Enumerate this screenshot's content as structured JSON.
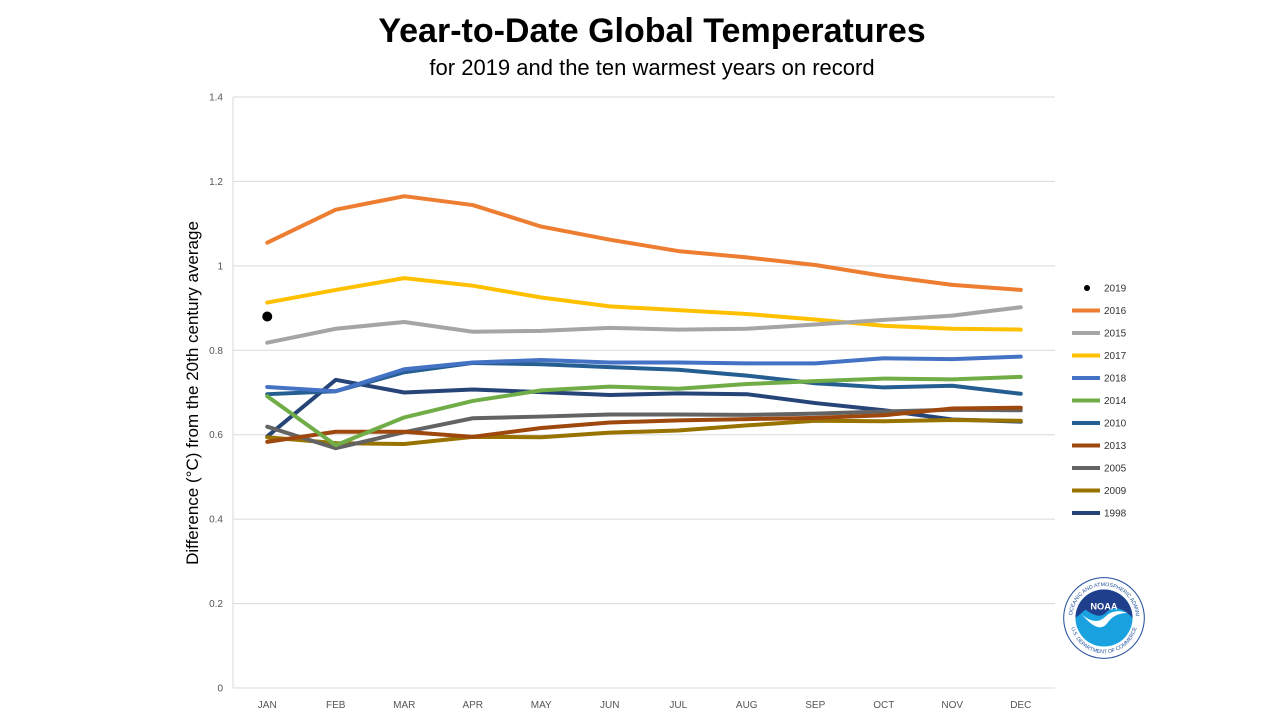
{
  "chart_data": {
    "type": "line",
    "title": "Year-to-Date Global Temperatures",
    "subtitle": "for 2019 and the ten warmest years on record",
    "ylabel": "Difference (°C) from the 20th century average",
    "xlabel": "",
    "categories": [
      "JAN",
      "FEB",
      "MAR",
      "APR",
      "MAY",
      "JUN",
      "JUL",
      "AUG",
      "SEP",
      "OCT",
      "NOV",
      "DEC"
    ],
    "ylim": [
      0,
      1.4
    ],
    "yticks": [
      0,
      0.2,
      0.4,
      0.6,
      0.8,
      1,
      1.2,
      1.4
    ],
    "ytick_labels": [
      "0",
      "0.2",
      "0.4",
      "0.6",
      "0.8",
      "1",
      "1.2",
      "1.4"
    ],
    "grid": true,
    "legend": "right",
    "series": [
      {
        "name": "2019",
        "color": "#000000",
        "marker": "dot",
        "values": [
          0.88,
          null,
          null,
          null,
          null,
          null,
          null,
          null,
          null,
          null,
          null,
          null
        ]
      },
      {
        "name": "2016",
        "color": "#ED7D31",
        "values": [
          1.055,
          1.133,
          1.165,
          1.144,
          1.093,
          1.062,
          1.035,
          1.02,
          1.002,
          0.976,
          0.955,
          0.943
        ]
      },
      {
        "name": "2015",
        "color": "#A5A5A5",
        "values": [
          0.818,
          0.851,
          0.867,
          0.844,
          0.846,
          0.853,
          0.849,
          0.851,
          0.861,
          0.872,
          0.882,
          0.902
        ]
      },
      {
        "name": "2017",
        "color": "#FFC000",
        "values": [
          0.913,
          0.943,
          0.971,
          0.953,
          0.925,
          0.904,
          0.895,
          0.886,
          0.873,
          0.858,
          0.851,
          0.849
        ]
      },
      {
        "name": "2018",
        "color": "#4472C4",
        "values": [
          0.713,
          0.703,
          0.755,
          0.771,
          0.777,
          0.771,
          0.771,
          0.769,
          0.769,
          0.781,
          0.779,
          0.785
        ]
      },
      {
        "name": "2014",
        "color": "#70AD47",
        "values": [
          0.691,
          0.575,
          0.641,
          0.68,
          0.705,
          0.714,
          0.709,
          0.72,
          0.727,
          0.733,
          0.731,
          0.737
        ]
      },
      {
        "name": "2010",
        "color": "#255E91",
        "values": [
          0.696,
          0.703,
          0.748,
          0.77,
          0.767,
          0.76,
          0.754,
          0.74,
          0.722,
          0.712,
          0.716,
          0.697
        ]
      },
      {
        "name": "2013",
        "color": "#9E480E",
        "values": [
          0.583,
          0.607,
          0.607,
          0.595,
          0.616,
          0.629,
          0.634,
          0.637,
          0.64,
          0.646,
          0.662,
          0.664
        ]
      },
      {
        "name": "2005",
        "color": "#636363",
        "values": [
          0.619,
          0.568,
          0.606,
          0.639,
          0.643,
          0.648,
          0.648,
          0.647,
          0.65,
          0.655,
          0.659,
          0.658
        ]
      },
      {
        "name": "2009",
        "color": "#997300",
        "values": [
          0.594,
          0.58,
          0.578,
          0.595,
          0.594,
          0.605,
          0.61,
          0.622,
          0.633,
          0.632,
          0.635,
          0.633
        ]
      },
      {
        "name": "1998",
        "color": "#264478",
        "values": [
          0.596,
          0.73,
          0.7,
          0.707,
          0.701,
          0.694,
          0.698,
          0.696,
          0.675,
          0.658,
          0.636,
          0.631
        ]
      }
    ]
  },
  "logo": {
    "name": "noaa-logo",
    "text": "NOAA",
    "ring_text_top": "NATIONAL OCEANIC AND ATMOSPHERIC ADMINISTRATION",
    "ring_text_bottom": "U.S. DEPARTMENT OF COMMERCE"
  }
}
